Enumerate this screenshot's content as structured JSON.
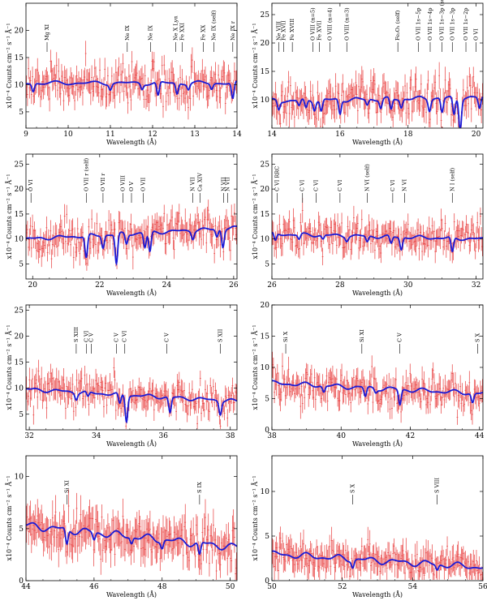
{
  "figure": {
    "description_colors": {
      "data": "#e83b3b",
      "model": "#1a1ad6",
      "axes": "#000000"
    }
  },
  "chart_data": [
    {
      "type": "line",
      "panel": "top-left",
      "xlabel": "Wavelength (Å)",
      "ylabel": "x10⁻⁴ Counts cm⁻² s⁻¹ Å⁻¹",
      "xlim": [
        9,
        14
      ],
      "ylim": [
        2,
        25
      ],
      "xticks": [
        9,
        10,
        11,
        12,
        13,
        14
      ],
      "yticks": [
        5,
        10,
        15,
        20
      ],
      "continuum": [
        10.3,
        10.3
      ],
      "absorptions": [
        [
          9.17,
          1.5
        ],
        [
          11.0,
          1.0
        ],
        [
          11.75,
          1.0
        ],
        [
          12.13,
          2.5
        ],
        [
          12.58,
          2.0
        ],
        [
          12.85,
          1.0
        ],
        [
          13.4,
          1.0
        ],
        [
          13.9,
          3.0
        ]
      ],
      "lines": [
        {
          "label": "Mg XI",
          "x": 9.5
        },
        {
          "label": "Ne IX",
          "x": 11.4
        },
        {
          "label": "Ne IX",
          "x": 11.95
        },
        {
          "label": "Ne X Lyα",
          "x": 12.55
        },
        {
          "label": "Fe XXI",
          "x": 12.7
        },
        {
          "label": "Fe XX",
          "x": 13.2
        },
        {
          "label": "Ne IX (self)",
          "x": 13.45
        },
        {
          "label": "Ne IX r",
          "x": 13.9
        }
      ]
    },
    {
      "type": "line",
      "panel": "top-right",
      "xlabel": "Wavelength (Å)",
      "ylabel": "x10⁻⁴ Counts cm⁻² s⁻¹ Å⁻¹",
      "xlim": [
        14,
        20.2
      ],
      "ylim": [
        5,
        27
      ],
      "xticks": [
        14,
        16,
        18,
        20
      ],
      "yticks": [
        10,
        15,
        20,
        25
      ],
      "continuum": [
        9.8,
        10.4
      ],
      "absorptions": [
        [
          14.2,
          1.5
        ],
        [
          14.8,
          1.0
        ],
        [
          15.0,
          1.5
        ],
        [
          15.25,
          1.5
        ],
        [
          15.45,
          2.0
        ],
        [
          16.0,
          2.5
        ],
        [
          16.8,
          1.0
        ],
        [
          17.2,
          1.5
        ],
        [
          17.5,
          2.0
        ],
        [
          17.8,
          1.5
        ],
        [
          18.63,
          2.0
        ],
        [
          19.0,
          2.5
        ],
        [
          19.35,
          3.0
        ],
        [
          19.53,
          5.5
        ],
        [
          20.1,
          2.0
        ]
      ],
      "lines": [
        {
          "label": "Ne VIII",
          "x": 14.2
        },
        {
          "label": "Fe XVII",
          "x": 14.35
        },
        {
          "label": "Fe XVIII",
          "x": 14.6
        },
        {
          "label": "O VIII (n=5)",
          "x": 15.2
        },
        {
          "label": "Fe XVII",
          "x": 15.4
        },
        {
          "label": "O VIII (n=4)",
          "x": 15.7
        },
        {
          "label": "O VIII (n=3)",
          "x": 16.2
        },
        {
          "label": "Fe₂O₃ (self)",
          "x": 17.7
        },
        {
          "label": "O VII 1s−5p",
          "x": 18.3
        },
        {
          "label": "O VII 1s−4p",
          "x": 18.65
        },
        {
          "label": "O VII 1s−3p (self)",
          "x": 19.0
        },
        {
          "label": "O VII 1s−3p",
          "x": 19.3
        },
        {
          "label": "O VII 1s−2p",
          "x": 19.7
        },
        {
          "label": "O VI",
          "x": 20.0
        }
      ]
    },
    {
      "type": "line",
      "panel": "mid1-left",
      "xlabel": "Wavelength (Å)",
      "ylabel": "x10⁻⁴ Counts cm⁻² s⁻¹ Å⁻¹",
      "xlim": [
        19.8,
        26.1
      ],
      "ylim": [
        2,
        27
      ],
      "xticks": [
        20,
        22,
        24,
        26
      ],
      "yticks": [
        5,
        10,
        15,
        20,
        25
      ],
      "continuum": [
        10.0,
        12.2
      ],
      "absorptions": [
        [
          21.6,
          4.5
        ],
        [
          22.1,
          2.5
        ],
        [
          22.5,
          6.0
        ],
        [
          22.8,
          2.0
        ],
        [
          23.35,
          3.0
        ],
        [
          23.5,
          4.0
        ],
        [
          24.78,
          1.5
        ],
        [
          25.5,
          1.5
        ],
        [
          25.68,
          3.5
        ]
      ],
      "lines": [
        {
          "label": "O VI",
          "x": 19.95
        },
        {
          "label": "O VII r (self)",
          "x": 21.6
        },
        {
          "label": "O VII r",
          "x": 22.1
        },
        {
          "label": "O VIII",
          "x": 22.7
        },
        {
          "label": "O V",
          "x": 22.95
        },
        {
          "label": "O VII",
          "x": 23.3
        },
        {
          "label": "N VII",
          "x": 24.78
        },
        {
          "label": "Ca XIV",
          "x": 25.0
        },
        {
          "label": "N VII",
          "x": 25.7
        },
        {
          "label": "N VII",
          "x": 25.82
        }
      ]
    },
    {
      "type": "line",
      "panel": "mid1-right",
      "xlabel": "Wavelength (Å)",
      "ylabel": "x10⁻⁴ Counts cm⁻² s⁻¹ Å⁻¹",
      "xlim": [
        26,
        32.2
      ],
      "ylim": [
        2,
        27
      ],
      "xticks": [
        26,
        28,
        30,
        32
      ],
      "yticks": [
        5,
        10,
        15,
        20,
        25
      ],
      "continuum": [
        11.0,
        10.0
      ],
      "absorptions": [
        [
          26.1,
          1.5
        ],
        [
          26.8,
          1.0
        ],
        [
          27.5,
          0.8
        ],
        [
          28.2,
          0.8
        ],
        [
          28.8,
          1.2
        ],
        [
          29.5,
          1.5
        ],
        [
          29.8,
          2.5
        ],
        [
          31.3,
          3.0
        ]
      ],
      "lines": [
        {
          "label": "C VI RRC",
          "x": 26.15
        },
        {
          "label": "C VI",
          "x": 26.9
        },
        {
          "label": "C VI",
          "x": 27.3
        },
        {
          "label": "C VI",
          "x": 28.0
        },
        {
          "label": "N VI (self)",
          "x": 28.8
        },
        {
          "label": "C VI",
          "x": 29.55
        },
        {
          "label": "N VI",
          "x": 29.9
        },
        {
          "label": "N I (self)",
          "x": 31.3
        }
      ]
    },
    {
      "type": "line",
      "panel": "mid2-left",
      "xlabel": "Wavelength (Å)",
      "ylabel": "x10⁻⁴ Counts cm⁻² s⁻¹ Å⁻¹",
      "xlim": [
        31.9,
        38.2
      ],
      "ylim": [
        2,
        26
      ],
      "xticks": [
        32,
        34,
        36,
        38
      ],
      "yticks": [
        5,
        10,
        15,
        20,
        25
      ],
      "continuum": [
        9.8,
        7.5
      ],
      "absorptions": [
        [
          33.4,
          1.2
        ],
        [
          33.75,
          1.0
        ],
        [
          34.7,
          2.0
        ],
        [
          34.9,
          5.0
        ],
        [
          36.2,
          3.0
        ],
        [
          37.7,
          2.5
        ]
      ],
      "lines": [
        {
          "label": "S XIII",
          "x": 33.4
        },
        {
          "label": "C VI",
          "x": 33.7
        },
        {
          "label": "C V",
          "x": 33.85
        },
        {
          "label": "C V",
          "x": 34.6
        },
        {
          "label": "C VI",
          "x": 34.85
        },
        {
          "label": "C V",
          "x": 36.1
        },
        {
          "label": "S XII",
          "x": 37.7
        }
      ]
    },
    {
      "type": "line",
      "panel": "mid2-right",
      "xlabel": "Wavelength (Å)",
      "ylabel": "x10⁻⁴ Counts cm⁻² s⁻¹ Å⁻¹",
      "xlim": [
        38,
        44.1
      ],
      "ylim": [
        0,
        20
      ],
      "xticks": [
        38,
        40,
        42,
        44
      ],
      "yticks": [
        0,
        5,
        10,
        15,
        20
      ],
      "continuum": [
        7.5,
        5.8
      ],
      "absorptions": [
        [
          39.5,
          1.0
        ],
        [
          40.7,
          1.5
        ],
        [
          41.0,
          0.6
        ],
        [
          41.7,
          2.5
        ],
        [
          43.8,
          1.5
        ]
      ],
      "lines": [
        {
          "label": "Si X",
          "x": 38.4
        },
        {
          "label": "Si XI",
          "x": 40.6
        },
        {
          "label": "C V",
          "x": 41.7
        },
        {
          "label": "S X",
          "x": 43.95
        }
      ]
    },
    {
      "type": "line",
      "panel": "bottom-left",
      "xlabel": "Wavelength (Å)",
      "ylabel": "x10⁻⁴ Counts cm⁻² s⁻¹ Å⁻¹",
      "xlim": [
        44,
        50.2
      ],
      "ylim": [
        0,
        12
      ],
      "xticks": [
        44,
        46,
        48,
        50
      ],
      "yticks": [
        0,
        5,
        10
      ],
      "continuum": [
        5.3,
        3.2
      ],
      "absorptions": [
        [
          45.2,
          1.5
        ],
        [
          46.0,
          0.7
        ],
        [
          47.1,
          0.6
        ],
        [
          48.0,
          0.7
        ],
        [
          49.1,
          1.2
        ]
      ],
      "lines": [
        {
          "label": "Si XI",
          "x": 45.2
        },
        {
          "label": "S IX",
          "x": 49.1
        }
      ]
    },
    {
      "type": "line",
      "panel": "bottom-right",
      "xlabel": "Wavelength (Å)",
      "ylabel": "x10⁻⁴ Counts cm⁻² s⁻¹ Å⁻¹",
      "xlim": [
        50,
        56
      ],
      "ylim": [
        0,
        14
      ],
      "xticks": [
        50,
        52,
        54,
        56
      ],
      "yticks": [
        0,
        5,
        10
      ],
      "continuum": [
        3.0,
        1.5
      ],
      "absorptions": [
        [
          52.3,
          0.8
        ],
        [
          54.7,
          0.6
        ]
      ],
      "lines": [
        {
          "label": "S X",
          "x": 52.3
        },
        {
          "label": "S VIII",
          "x": 54.7
        }
      ]
    }
  ]
}
